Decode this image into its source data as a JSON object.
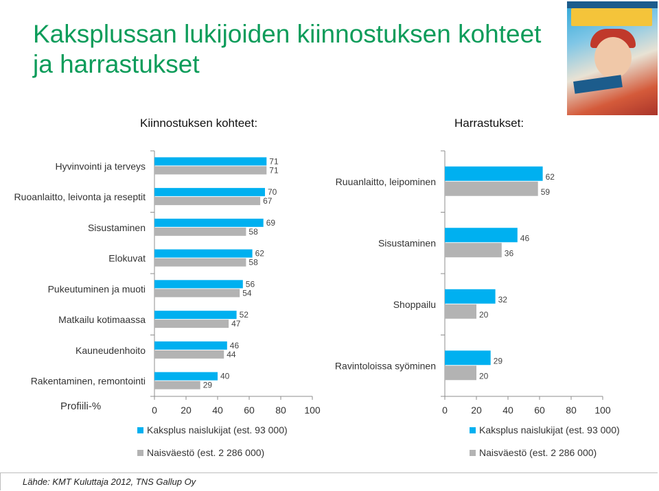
{
  "page": {
    "title": "Kaksplussan lukijoiden kiinnostuksen kohteet ja harrastukset",
    "source": "Lähde: KMT Kuluttaja 2012, TNS Gallup Oy"
  },
  "colors": {
    "series1": "#00b0f0",
    "series2": "#b3b3b3",
    "title": "#0d9c5a"
  },
  "chart_data": [
    {
      "type": "bar",
      "orientation": "horizontal",
      "title": "Kiinnostuksen kohteet:",
      "xlabel": "Profiili-%",
      "xlim": [
        0,
        100
      ],
      "xticks": [
        "0",
        "20",
        "40",
        "60",
        "80",
        "100"
      ],
      "categories": [
        "Hyvinvointi ja terveys",
        "Ruoanlaitto, leivonta ja reseptit",
        "Sisustaminen",
        "Elokuvat",
        "Pukeutuminen ja muoti",
        "Matkailu kotimaassa",
        "Kauneudenhoito",
        "Rakentaminen, remontointi"
      ],
      "series": [
        {
          "name": "Kaksplus naislukijat (est. 93 000)",
          "color": "#00b0f0",
          "values": [
            71,
            70,
            69,
            62,
            56,
            52,
            46,
            40
          ]
        },
        {
          "name": "Naisväestö (est. 2 286 000)",
          "color": "#b3b3b3",
          "values": [
            71,
            67,
            58,
            58,
            54,
            47,
            44,
            29
          ]
        }
      ],
      "legend": "bottom"
    },
    {
      "type": "bar",
      "orientation": "horizontal",
      "title": "Harrastukset:",
      "xlim": [
        0,
        100
      ],
      "xticks": [
        "0",
        "20",
        "40",
        "60",
        "80",
        "100"
      ],
      "categories": [
        "Ruuanlaitto, leipominen",
        "Sisustaminen",
        "Shoppailu",
        "Ravintoloissa syöminen"
      ],
      "series": [
        {
          "name": "Kaksplus naislukijat (est. 93 000)",
          "color": "#00b0f0",
          "values": [
            62,
            46,
            32,
            29
          ]
        },
        {
          "name": "Naisväestö (est. 2 286 000)",
          "color": "#b3b3b3",
          "values": [
            59,
            36,
            20,
            20
          ]
        }
      ],
      "legend": "bottom"
    }
  ]
}
